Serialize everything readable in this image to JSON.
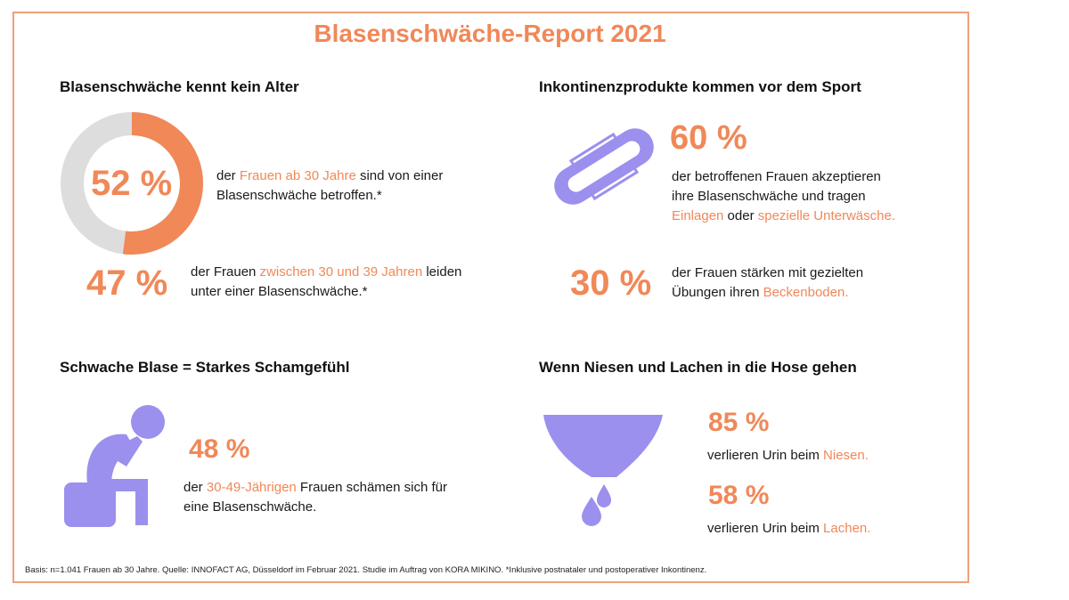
{
  "title": "Blasenschwäche-Report 2021",
  "colors": {
    "accent": "#f08858",
    "purple": "#9b90ee",
    "donut_bg": "#dddddd",
    "frame": "#f0a07c"
  },
  "s1": {
    "heading": "Blasenschwäche kennt kein Alter",
    "donut_value": "52 %",
    "donut_fraction": 0.52,
    "t1_a": "der ",
    "t1_hl": "Frauen ab 30 Jahre",
    "t1_b": " sind von einer",
    "t1_c": "Blasenschwäche betroffen.*",
    "big2": "47 %",
    "t2_a": "der Frauen ",
    "t2_hl": "zwischen 30 und 39 Jahren",
    "t2_b": " leiden",
    "t2_c": "unter einer Blasenschwäche.*"
  },
  "s2": {
    "heading": "Inkontinenzprodukte kommen vor dem Sport",
    "icon": "pad-icon",
    "big1": "60 %",
    "t1_a": "der betroffenen Frauen akzeptieren",
    "t1_b": "ihre Blasenschwäche und tragen",
    "t1_hl1": "Einlagen",
    "t1_mid": " oder ",
    "t1_hl2": "spezielle Unterwäsche.",
    "big2": "30 %",
    "t2_a": "der Frauen stärken mit gezielten",
    "t2_b": "Übungen ihren ",
    "t2_hl": "Beckenboden."
  },
  "s3": {
    "heading": "Schwache Blase = Starkes Schamgefühl",
    "icon": "ashamed-person-icon",
    "big": "48 %",
    "t_a": "der ",
    "t_hl": "30-49-Jährigen",
    "t_b": " Frauen schämen sich für",
    "t_c": "eine Blasenschwäche."
  },
  "s4": {
    "heading": "Wenn Niesen und Lachen in die Hose gehen",
    "icon": "underwear-drops-icon",
    "big1": "85 %",
    "t1_a": "verlieren Urin beim ",
    "t1_hl": "Niesen.",
    "big2": "58 %",
    "t2_a": "verlieren Urin beim ",
    "t2_hl": "Lachen."
  },
  "footer": "Basis: n=1.041 Frauen ab 30 Jahre. Quelle: INNOFACT AG, Düsseldorf im Februar 2021. Studie im Auftrag von KORA MIKINO. *Inklusive postnataler und postoperativer Inkontinenz."
}
